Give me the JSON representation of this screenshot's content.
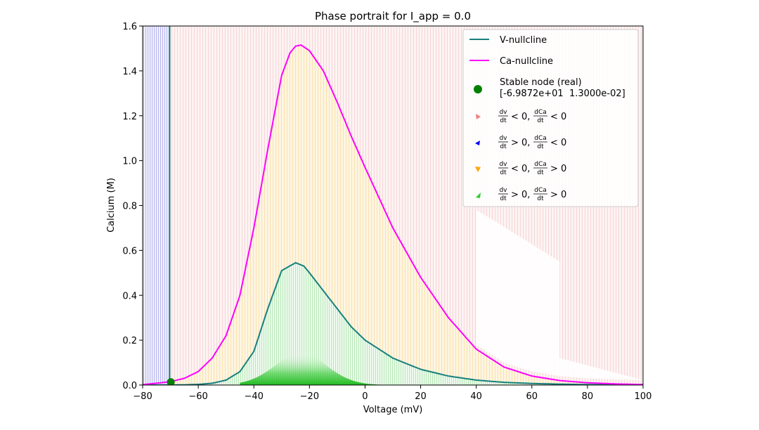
{
  "chart_data": {
    "type": "line",
    "title": "Phase portrait for I_app = 0.0",
    "xlabel": "Voltage (mV)",
    "ylabel": "Calcium (M)",
    "xlim": [
      -80,
      100
    ],
    "ylim": [
      0,
      1.6
    ],
    "xticks": [
      "−80",
      "−60",
      "−40",
      "−20",
      "0",
      "20",
      "40",
      "60",
      "80",
      "100"
    ],
    "xtick_values": [
      -80,
      -60,
      -40,
      -20,
      0,
      20,
      40,
      60,
      80,
      100
    ],
    "yticks": [
      "0.0",
      "0.2",
      "0.4",
      "0.6",
      "0.8",
      "1.0",
      "1.2",
      "1.4",
      "1.6"
    ],
    "ytick_values": [
      0,
      0.2,
      0.4,
      0.6,
      0.8,
      1.0,
      1.2,
      1.4,
      1.6
    ],
    "grid": false,
    "legend_placement": "top-right",
    "series": [
      {
        "name": "V-nullcline",
        "color": "#17807e",
        "x": [
          -80,
          -75,
          -70,
          -65,
          -60,
          -55,
          -50,
          -45,
          -40,
          -35,
          -30,
          -25,
          -22,
          -20,
          -15,
          -10,
          -5,
          0,
          10,
          20,
          30,
          40,
          50,
          60,
          70,
          80,
          90,
          100
        ],
        "y": [
          0.0,
          0.0,
          0.0,
          0.001,
          0.003,
          0.008,
          0.022,
          0.06,
          0.15,
          0.34,
          0.51,
          0.545,
          0.53,
          0.5,
          0.42,
          0.34,
          0.26,
          0.2,
          0.12,
          0.07,
          0.04,
          0.022,
          0.012,
          0.007,
          0.004,
          0.002,
          0.001,
          0.0
        ],
        "vertical_x": -70.3
      },
      {
        "name": "Ca-nullcline",
        "color": "#ff00ff",
        "x": [
          -80,
          -75,
          -70,
          -65,
          -60,
          -55,
          -50,
          -45,
          -40,
          -35,
          -30,
          -27,
          -25,
          -23,
          -20,
          -15,
          -10,
          -5,
          0,
          10,
          20,
          30,
          40,
          50,
          60,
          70,
          80,
          90,
          100
        ],
        "y": [
          0.002,
          0.008,
          0.015,
          0.03,
          0.06,
          0.12,
          0.22,
          0.4,
          0.7,
          1.05,
          1.38,
          1.48,
          1.51,
          1.515,
          1.49,
          1.4,
          1.26,
          1.11,
          0.97,
          0.7,
          0.48,
          0.3,
          0.16,
          0.08,
          0.04,
          0.02,
          0.01,
          0.005,
          0.002
        ]
      }
    ],
    "points": [
      {
        "name": "Stable node (real)",
        "label": "[-6.9872e+01  1.3000e-02]",
        "x": -69.872,
        "y": 0.013,
        "color": "#008000"
      }
    ],
    "region_colors": {
      "dv_neg_dca_neg": "#f08080",
      "dv_pos_dca_neg": "#0000ff",
      "dv_neg_dca_pos": "#ffa500",
      "dv_pos_dca_pos": "#32cd32"
    }
  },
  "legend": {
    "v_nullcline": "V-nullcline",
    "ca_nullcline": "Ca-nullcline",
    "stable_node": "Stable node (real)",
    "stable_node_value": "[-6.9872e+01  1.3000e-02]",
    "region1_sign1": "< 0,",
    "region1_sign2": "< 0",
    "region2_sign1": "> 0,",
    "region2_sign2": "< 0",
    "region3_sign1": "< 0,",
    "region3_sign2": "> 0",
    "region4_sign1": "> 0,",
    "region4_sign2": "> 0",
    "dv": "dv",
    "dca": "dCa",
    "dt": "dt"
  }
}
